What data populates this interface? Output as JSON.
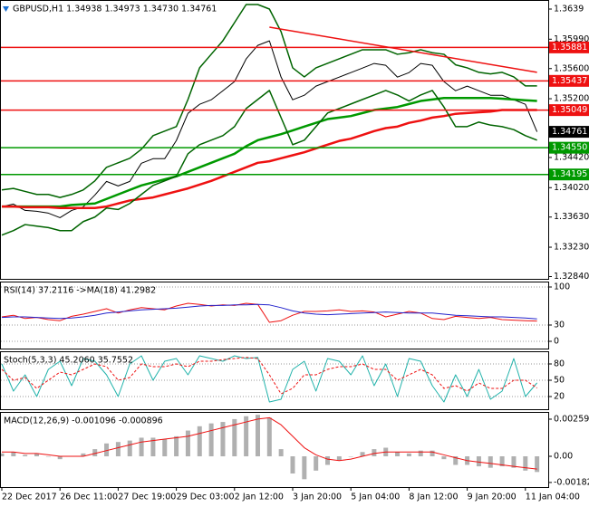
{
  "chart_data": [
    {
      "type": "line",
      "title": "GBPUSD,H1  1.34938 1.34973 1.34730 1.34761",
      "categories": [
        "22 Dec 2017",
        null,
        null,
        null,
        null,
        "26 Dec 11:00",
        null,
        null,
        null,
        null,
        "27 Dec 19:00",
        null,
        null,
        null,
        null,
        "29 Dec 03:00",
        null,
        null,
        null,
        null,
        "2 Jan 12:00",
        null,
        null,
        null,
        null,
        "3 Jan 20:00",
        null,
        null,
        null,
        null,
        "5 Jan 04:00",
        null,
        null,
        null,
        null,
        "8 Jan 12:00",
        null,
        null,
        null,
        null,
        "9 Jan 20:00",
        null,
        null,
        null,
        null,
        "11 Jan 04:00",
        null
      ],
      "ylim": [
        1.3281,
        1.3651
      ],
      "yticks": [
        1.3639,
        {
          "value": 1.3599,
          "label": "1.35990"
        },
        {
          "value": 1.356,
          "label": "1.35600"
        },
        {
          "value": 1.352,
          "label": "1.35200"
        },
        {
          "value": 1.3442,
          "label": "1.34420"
        },
        {
          "value": 1.3402,
          "label": "1.34020"
        },
        {
          "value": 1.3363,
          "label": "1.33630"
        },
        {
          "value": 1.3323,
          "label": "1.33230"
        },
        {
          "value": 1.3284,
          "label": "1.32840"
        }
      ],
      "grid": false,
      "series": [
        {
          "color": "#000000",
          "values": [
            1.33766,
            1.33802,
            1.33718,
            1.33706,
            1.33682,
            1.33622,
            1.33718,
            1.33766,
            1.33922,
            1.34103,
            1.34043,
            1.34103,
            1.34344,
            1.34404,
            1.34404,
            1.34645,
            1.35006,
            1.35126,
            1.35186,
            1.35306,
            1.35427,
            1.35728,
            1.35908,
            1.35968,
            1.35487,
            1.35186,
            1.35246,
            1.35367,
            1.35427,
            1.35487,
            1.35547,
            1.35607,
            1.35668,
            1.35643,
            1.35487,
            1.35547,
            1.35668,
            1.35643,
            1.35427,
            1.35306,
            1.35367,
            1.35306,
            1.35246,
            1.35246,
            1.35186,
            1.35126,
            1.34761
          ]
        },
        {
          "color": "#009900",
          "values": [
            1.3377,
            1.3377,
            1.3377,
            1.3377,
            1.3377,
            1.3377,
            1.3379,
            1.338,
            1.3381,
            1.3387,
            1.3393,
            1.3399,
            1.3405,
            1.3409,
            1.3413,
            1.3417,
            1.3423,
            1.3429,
            1.3435,
            1.3441,
            1.3447,
            1.3457,
            1.3465,
            1.3469,
            1.3473,
            1.3478,
            1.3483,
            1.3488,
            1.3493,
            1.3495,
            1.3497,
            1.3501,
            1.3505,
            1.3507,
            1.3509,
            1.3513,
            1.3517,
            1.3519,
            1.3521,
            1.3521,
            1.3521,
            1.3521,
            1.3521,
            1.352,
            1.3519,
            1.3518,
            1.3517
          ]
        },
        {
          "color": "#ee1111",
          "values": [
            1.3377,
            1.3377,
            1.3376,
            1.3376,
            1.3376,
            1.3375,
            1.3375,
            1.3375,
            1.3375,
            1.3377,
            1.3381,
            1.3385,
            1.3387,
            1.3389,
            1.3393,
            1.3397,
            1.3401,
            1.3406,
            1.3411,
            1.3417,
            1.3423,
            1.3429,
            1.3435,
            1.3437,
            1.3441,
            1.3445,
            1.3449,
            1.3454,
            1.3459,
            1.3464,
            1.3467,
            1.3472,
            1.3477,
            1.3481,
            1.3483,
            1.3488,
            1.3491,
            1.3495,
            1.3497,
            1.35,
            1.3501,
            1.3502,
            1.3503,
            1.3505,
            1.3505,
            1.3505,
            1.3505
          ]
        },
        {
          "color": "#006400",
          "values": [
            1.3399,
            1.3401,
            1.3397,
            1.3393,
            1.3393,
            1.3389,
            1.3393,
            1.3399,
            1.3411,
            1.3429,
            1.3435,
            1.3441,
            1.3453,
            1.3471,
            1.3477,
            1.3483,
            1.3519,
            1.3561,
            1.3579,
            1.3597,
            1.3621,
            1.3645,
            1.3645,
            1.3639,
            1.3609,
            1.3561,
            1.3549,
            1.3561,
            1.3567,
            1.3573,
            1.3579,
            1.3585,
            1.3585,
            1.3585,
            1.3579,
            1.3581,
            1.3585,
            1.3581,
            1.3579,
            1.3565,
            1.3561,
            1.3555,
            1.3553,
            1.3555,
            1.3549,
            1.3537,
            1.3537
          ]
        },
        {
          "color": "#006400",
          "values": [
            1.3339,
            1.3345,
            1.3353,
            1.3351,
            1.3349,
            1.3345,
            1.3345,
            1.3357,
            1.3363,
            1.3375,
            1.3373,
            1.3381,
            1.3393,
            1.3405,
            1.3411,
            1.3417,
            1.3447,
            1.3459,
            1.3465,
            1.3471,
            1.3483,
            1.3507,
            1.3519,
            1.3531,
            1.3495,
            1.3459,
            1.3465,
            1.3483,
            1.3501,
            1.3507,
            1.3513,
            1.3519,
            1.3525,
            1.3531,
            1.3525,
            1.3517,
            1.3525,
            1.3531,
            1.3509,
            1.3483,
            1.3483,
            1.3489,
            1.3485,
            1.3483,
            1.3479,
            1.3471,
            1.3465
          ]
        }
      ],
      "levels": [
        {
          "value": 1.35881,
          "color": "#ee1111"
        },
        {
          "value": 1.35437,
          "color": "#ee1111"
        },
        {
          "value": 1.35049,
          "color": "#ee1111"
        },
        {
          "value": 1.3455,
          "label": "1.34550",
          "color": "#009900"
        },
        {
          "value": 1.34195,
          "color": "#009900"
        }
      ],
      "trendline": {
        "x": [
          23,
          46
        ],
        "values": [
          1.3615,
          1.3555
        ],
        "color": "#ee1111"
      },
      "last_price": 1.34761
    },
    {
      "type": "line",
      "title": "RSI(14) 37.2116  ->MA(18) 41.2982",
      "ylim": [
        0,
        100
      ],
      "yticks": [
        100,
        30,
        0
      ],
      "grid": true,
      "series": [
        {
          "color": "#ee1111",
          "values": [
            45,
            48,
            42,
            44,
            40,
            38,
            46,
            50,
            55,
            60,
            52,
            58,
            62,
            60,
            58,
            65,
            70,
            68,
            65,
            67,
            66,
            70,
            68,
            35,
            38,
            48,
            55,
            55,
            56,
            58,
            55,
            56,
            54,
            45,
            50,
            55,
            52,
            42,
            40,
            46,
            44,
            42,
            44,
            40,
            39,
            38,
            37.2116
          ]
        },
        {
          "color": "#2222cc",
          "values": [
            44,
            45,
            45,
            44,
            43,
            42,
            43,
            45,
            48,
            52,
            54,
            56,
            58,
            59,
            60,
            61,
            63,
            65,
            66,
            66,
            67,
            67,
            68,
            67,
            62,
            56,
            52,
            50,
            49,
            50,
            51,
            52,
            53,
            54,
            53,
            52,
            52,
            52,
            50,
            48,
            47,
            46,
            45,
            45,
            44,
            43,
            41.2982
          ]
        }
      ]
    },
    {
      "type": "line",
      "title": "Stoch(5,3,3) 45.2060 35.7552",
      "ylim": [
        0,
        100
      ],
      "yticks": [
        80,
        50,
        20
      ],
      "grid": true,
      "series": [
        {
          "color": "#20b2aa",
          "values": [
            80,
            30,
            60,
            20,
            70,
            85,
            40,
            90,
            85,
            60,
            20,
            80,
            95,
            50,
            85,
            90,
            60,
            95,
            90,
            85,
            95,
            90,
            92,
            10,
            15,
            70,
            85,
            30,
            90,
            85,
            60,
            95,
            40,
            80,
            20,
            90,
            85,
            40,
            10,
            60,
            20,
            70,
            15,
            30,
            90,
            20,
            45.206
          ]
        },
        {
          "color": "#ee1111",
          "dashed": true,
          "values": [
            70,
            50,
            55,
            35,
            50,
            65,
            60,
            70,
            80,
            75,
            50,
            55,
            80,
            75,
            75,
            80,
            75,
            85,
            85,
            88,
            90,
            92,
            90,
            60,
            25,
            35,
            60,
            60,
            70,
            75,
            75,
            80,
            70,
            70,
            50,
            60,
            70,
            60,
            35,
            40,
            30,
            45,
            35,
            35,
            50,
            50,
            35.7552
          ]
        }
      ]
    },
    {
      "type": "bar",
      "title": "MACD(12,26,9) -0.001096 -0.000896",
      "ylim": [
        -0.00215,
        0.0031
      ],
      "yticks": [
        0.002595,
        {
          "value": 0,
          "label": "0.00"
        },
        -0.001828
      ],
      "grid": false,
      "series": [
        {
          "type": "bar",
          "color": "#b0b0b0",
          "values": [
            0.0002,
            0.0003,
            0.0001,
            0.0002,
            0,
            -0.0002,
            0,
            0.0002,
            0.0005,
            0.0009,
            0.001,
            0.0011,
            0.0013,
            0.0013,
            0.0012,
            0.0014,
            0.0018,
            0.0021,
            0.0023,
            0.0024,
            0.0026,
            0.0028,
            0.0029,
            0.0027,
            0.0005,
            -0.0012,
            -0.0016,
            -0.001,
            -0.0006,
            -0.0003,
            0,
            0.0003,
            0.0005,
            0.0006,
            0.0003,
            0.0002,
            0.0004,
            0.0004,
            -0.0002,
            -0.0006,
            -0.0006,
            -0.0007,
            -0.0008,
            -0.0007,
            -0.0008,
            -0.001,
            -0.001096
          ]
        },
        {
          "type": "line",
          "color": "#ee1111",
          "values": [
            0.0003,
            0.0003,
            0.0002,
            0.0002,
            0.0001,
            0,
            0,
            0,
            0.0002,
            0.0004,
            0.0006,
            0.0008,
            0.001,
            0.0011,
            0.0012,
            0.0013,
            0.0014,
            0.0016,
            0.0018,
            0.002,
            0.0022,
            0.0024,
            0.0026,
            0.0027,
            0.0022,
            0.0014,
            0.0006,
            0.0001,
            -0.0002,
            -0.0003,
            -0.0002,
            0,
            0.0002,
            0.0003,
            0.0003,
            0.0003,
            0.0003,
            0.0003,
            0.0001,
            -0.0001,
            -0.0003,
            -0.0004,
            -0.0005,
            -0.0006,
            -0.0007,
            -0.0008,
            -0.000896
          ]
        }
      ]
    }
  ]
}
